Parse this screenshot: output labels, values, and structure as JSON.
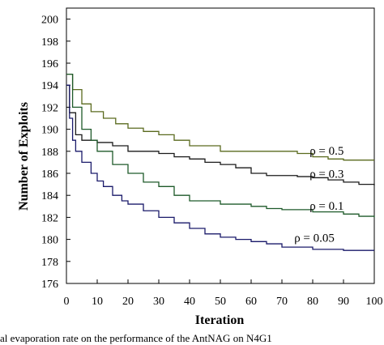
{
  "chart_data": {
    "type": "line",
    "xlabel": "Iteration",
    "ylabel": "Number of Exploits",
    "xlim": [
      0,
      100
    ],
    "ylim": [
      176,
      201
    ],
    "x_ticks": [
      0,
      10,
      20,
      30,
      40,
      50,
      60,
      70,
      80,
      90,
      100
    ],
    "y_ticks": [
      176,
      178,
      180,
      182,
      184,
      186,
      188,
      190,
      192,
      194,
      196,
      198,
      200
    ],
    "grid": false,
    "series": [
      {
        "name": "ρ = 0.5",
        "color": "#5a6a1e",
        "x": [
          0,
          2,
          5,
          8,
          12,
          16,
          20,
          25,
          30,
          35,
          40,
          50,
          60,
          70,
          75,
          80,
          85,
          90,
          95,
          100
        ],
        "values": [
          195.0,
          193.6,
          192.3,
          191.6,
          191.0,
          190.5,
          190.1,
          189.8,
          189.5,
          189.0,
          188.5,
          188.0,
          188.0,
          188.0,
          187.8,
          187.5,
          187.3,
          187.2,
          187.2,
          187.2
        ]
      },
      {
        "name": "ρ = 0.3",
        "color": "#1a1a1a",
        "x": [
          0,
          1,
          3,
          5,
          10,
          15,
          20,
          25,
          30,
          35,
          40,
          45,
          50,
          55,
          60,
          65,
          70,
          75,
          80,
          85,
          90,
          95,
          100
        ],
        "values": [
          194.0,
          191.5,
          189.5,
          189.0,
          188.8,
          188.5,
          188.0,
          188.0,
          187.8,
          187.5,
          187.3,
          187.0,
          186.8,
          186.5,
          186.0,
          185.8,
          185.8,
          185.7,
          185.6,
          185.4,
          185.2,
          185.0,
          184.9
        ]
      },
      {
        "name": "ρ = 0.1",
        "color": "#1e5a2a",
        "x": [
          0,
          2,
          5,
          8,
          10,
          15,
          20,
          25,
          30,
          35,
          40,
          50,
          60,
          65,
          70,
          80,
          90,
          95,
          100
        ],
        "values": [
          195.0,
          192.0,
          190.0,
          189.0,
          188.0,
          186.8,
          186.0,
          185.2,
          184.8,
          184.0,
          183.5,
          183.2,
          183.0,
          182.8,
          182.7,
          182.5,
          182.3,
          182.1,
          182.0
        ]
      },
      {
        "name": "ρ = 0.05",
        "color": "#1a1a6a",
        "x": [
          0,
          1,
          2,
          3,
          5,
          8,
          10,
          12,
          15,
          18,
          20,
          25,
          30,
          35,
          40,
          45,
          50,
          55,
          60,
          65,
          70,
          80,
          90,
          100
        ],
        "values": [
          194.0,
          191.0,
          189.0,
          188.0,
          187.0,
          186.0,
          185.3,
          184.8,
          184.0,
          183.5,
          183.2,
          182.6,
          182.0,
          181.5,
          181.0,
          180.5,
          180.2,
          180.0,
          179.8,
          179.6,
          179.3,
          179.1,
          179.0,
          179.0
        ]
      }
    ],
    "series_labels": [
      {
        "text": "ρ = 0.5",
        "x": 79,
        "y": 187.7
      },
      {
        "text": "ρ = 0.3",
        "x": 79,
        "y": 185.6
      },
      {
        "text": "ρ = 0.1",
        "x": 79,
        "y": 182.7
      },
      {
        "text": "ρ = 0.05",
        "x": 74,
        "y": 179.8
      }
    ]
  },
  "caption": "al evaporation rate on the performance of the AntNAG on N4G1"
}
